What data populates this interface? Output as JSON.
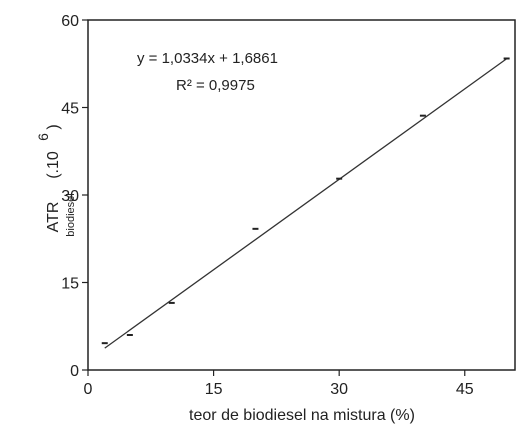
{
  "chart_data": {
    "type": "scatter",
    "x_label": "teor de biodiesel na mistura (%)",
    "y_label_main": "ATR",
    "y_label_sub": "biodiesel",
    "y_label_factor": "(.10",
    "y_label_exponent": "6",
    "y_label_close": ")",
    "xlim": [
      0,
      51
    ],
    "ylim": [
      0,
      60
    ],
    "x_ticks": [
      0,
      15,
      30,
      45
    ],
    "y_ticks": [
      0,
      15,
      30,
      45,
      60
    ],
    "x_tick_labels": [
      "0",
      "15",
      "30",
      "45"
    ],
    "y_tick_labels": [
      "0",
      "15",
      "30",
      "45",
      "60"
    ],
    "points": [
      {
        "x": 2,
        "y": 4.6
      },
      {
        "x": 5,
        "y": 6.0
      },
      {
        "x": 10,
        "y": 11.5
      },
      {
        "x": 20,
        "y": 24.2
      },
      {
        "x": 30,
        "y": 32.8
      },
      {
        "x": 40,
        "y": 43.6
      },
      {
        "x": 50,
        "y": 53.4
      }
    ],
    "fit": {
      "slope": 1.0334,
      "intercept": 1.6861,
      "x_range": [
        2,
        50
      ]
    },
    "equation_text": "y = 1,0334x  + 1,6861",
    "r2_text": "R² = 0,9975",
    "grid": false,
    "colors": {
      "axis": "#222222",
      "line": "#333333",
      "points": "#222222"
    }
  }
}
